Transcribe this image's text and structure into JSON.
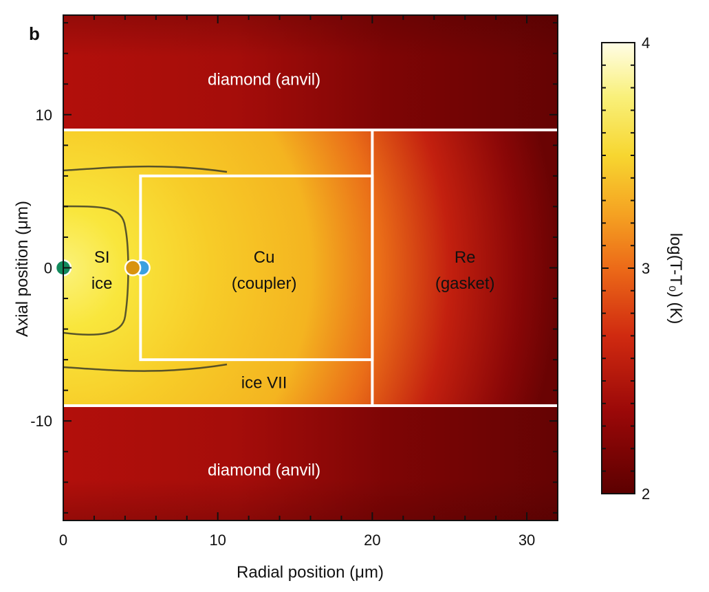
{
  "panel_label": "b",
  "chart_data": {
    "type": "heatmap",
    "xlabel": "Radial position (μm)",
    "ylabel": "Axial position (μm)",
    "xlim": [
      0,
      32
    ],
    "ylim": [
      -16.5,
      16.5
    ],
    "x_ticks": [
      0,
      10,
      20,
      30
    ],
    "y_ticks": [
      -10,
      0,
      10
    ],
    "colorbar": {
      "label": "log(T-T₀) (K)",
      "range": [
        2,
        4
      ],
      "ticks": [
        2,
        3,
        4
      ],
      "colormap": [
        "#5c0000",
        "#c41a0e",
        "#f06a1a",
        "#f5b324",
        "#f7e040",
        "#fbfaa0",
        "#fffde6"
      ]
    },
    "boundaries": {
      "anvil_interface_y": [
        9,
        -9
      ],
      "coupler_box": {
        "x0": 5,
        "x1": 20,
        "y0": -6,
        "y1": 6
      },
      "gasket_inner_x": 20,
      "line_color": "#ffffff"
    },
    "regions": [
      {
        "text": "diamond (anvil)",
        "x": 13,
        "y": 12.3,
        "color": "#ffffff"
      },
      {
        "text": "SI",
        "x": 2.5,
        "y": 0.7,
        "color": "#111111"
      },
      {
        "text": "ice",
        "x": 2.5,
        "y": -1.0,
        "color": "#111111"
      },
      {
        "text": "Cu",
        "x": 13,
        "y": 0.7,
        "color": "#111111"
      },
      {
        "text": "(coupler)",
        "x": 13,
        "y": -1.0,
        "color": "#111111"
      },
      {
        "text": "Re",
        "x": 26,
        "y": 0.7,
        "color": "#111111"
      },
      {
        "text": "(gasket)",
        "x": 26,
        "y": -1.0,
        "color": "#111111"
      },
      {
        "text": "ice VII",
        "x": 13,
        "y": -7.5,
        "color": "#111111"
      },
      {
        "text": "diamond (anvil)",
        "x": 13,
        "y": -13.2,
        "color": "#ffffff"
      }
    ],
    "markers": [
      {
        "x": 0,
        "y": 0,
        "color": "#128a5c"
      },
      {
        "x": 5.1,
        "y": 0,
        "color": "#3aa0e0"
      },
      {
        "x": 4.5,
        "y": 0,
        "color": "#d9930f"
      }
    ]
  }
}
